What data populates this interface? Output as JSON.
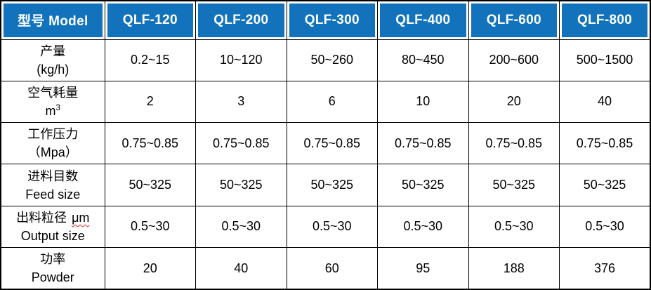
{
  "table": {
    "header": {
      "model_label": "型号 Model",
      "columns": [
        "QLF-120",
        "QLF-200",
        "QLF-300",
        "QLF-400",
        "QLF-600",
        "QLF-800"
      ]
    },
    "rows": [
      {
        "label_line1": "产量",
        "label_line2": "(kg/h)",
        "values": [
          "0.2~15",
          "10~120",
          "50~260",
          "80~450",
          "200~600",
          "500~1500"
        ]
      },
      {
        "label_line1": "空气耗量",
        "label_line2": "m",
        "label_line2_sup": "3",
        "values": [
          "2",
          "3",
          "6",
          "10",
          "20",
          "40"
        ]
      },
      {
        "label_line1": "工作压力",
        "label_line2": "（Mpa）",
        "values": [
          "0.75~0.85",
          "0.75~0.85",
          "0.75~0.85",
          "0.75~0.85",
          "0.75~0.85",
          "0.75~0.85"
        ]
      },
      {
        "label_line1": "进料目数",
        "label_line2": "Feed size",
        "values": [
          "50~325",
          "50~325",
          "50~325",
          "50~325",
          "50~325",
          "50~325"
        ]
      },
      {
        "label_line1": "出料粒径",
        "label_line1_suffix": "μm",
        "label_line2": "Output size",
        "values": [
          "0.5~30",
          "0.5~30",
          "0.5~30",
          "0.5~30",
          "0.5~30",
          "0.5~30"
        ]
      },
      {
        "label_line1": "功率",
        "label_line2": "Powder",
        "values": [
          "20",
          "40",
          "60",
          "95",
          "188",
          "376"
        ]
      }
    ],
    "colors": {
      "header_bg": "#1273BC",
      "header_text": "#FFFFFF",
      "grid_border": "#000000",
      "body_bg": "#FFFFFF",
      "spellcheck_underline": "#D93025"
    }
  }
}
